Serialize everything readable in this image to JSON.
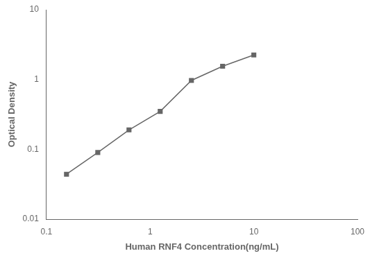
{
  "chart_data": {
    "type": "line",
    "x": [
      0.156,
      0.3125,
      0.625,
      1.25,
      2.5,
      5.0,
      10.0
    ],
    "values": [
      0.044,
      0.09,
      0.19,
      0.35,
      0.97,
      1.55,
      2.25
    ],
    "xlabel": "Human RNF4 Concentration(ng/mL)",
    "ylabel": "Optical Density",
    "xlim": [
      0.1,
      100
    ],
    "ylim": [
      0.01,
      10
    ],
    "xticks": [
      0.1,
      1,
      10,
      100
    ],
    "yticks": [
      0.01,
      0.1,
      1,
      10
    ],
    "log": true,
    "grid": false,
    "color": "#666666",
    "marker": "square"
  }
}
